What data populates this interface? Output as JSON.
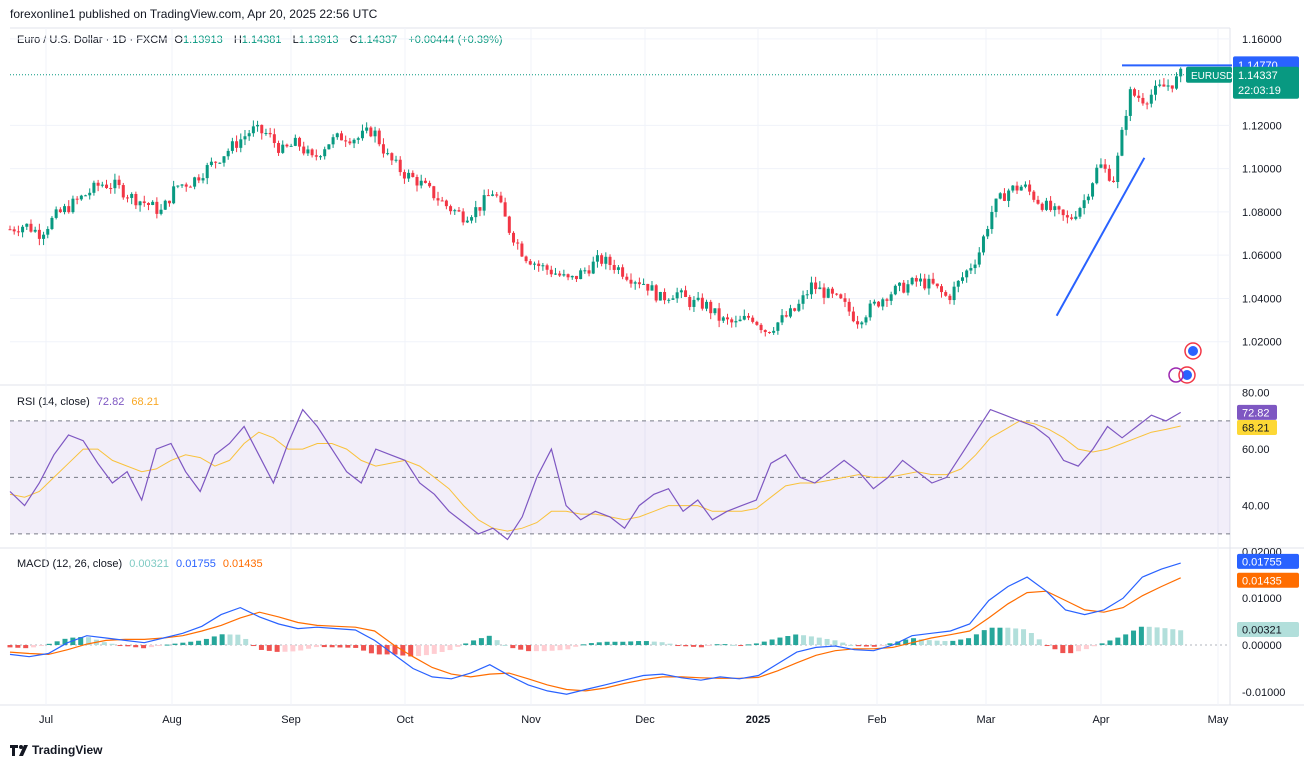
{
  "header": {
    "published": "forexonline1 published on TradingView.com, Apr 20, 2025 22:56 UTC"
  },
  "legend": {
    "symbol": "Euro / U.S. Dollar · 1D · FXCM",
    "o_label": "O",
    "o_value": "1.13913",
    "h_label": "H",
    "h_value": "1.14381",
    "l_label": "L",
    "l_value": "1.13913",
    "c_label": "C",
    "c_value": "1.14337",
    "change": "+0.00444 (+0.39%)"
  },
  "rsi_legend": {
    "name": "RSI (14, close)",
    "rsi": "72.82",
    "ma": "68.21"
  },
  "macd_legend": {
    "name": "MACD (12, 26, close)",
    "hist": "0.00321",
    "macd": "0.01755",
    "signal": "0.01435"
  },
  "footer": {
    "brand": "TradingView"
  },
  "colors": {
    "up": "#089981",
    "down": "#f23645",
    "trend": "#2962ff",
    "rsi": "#7e57c2",
    "rsi_ma": "#fdd835",
    "macd": "#2962ff",
    "signal": "#ff6d00",
    "hist_up": "#26a69a",
    "hist_up_light": "#b2dfdb",
    "hist_down": "#ef5350",
    "hist_down_light": "#ffcdd2"
  },
  "chart_data": [
    {
      "type": "candlestick",
      "title": "Euro / U.S. Dollar · 1D · FXCM",
      "symbol_tag": "EURUSD",
      "x_labels": [
        "Jul",
        "Aug",
        "Sep",
        "Oct",
        "Nov",
        "Dec",
        "2025",
        "Feb",
        "Mar",
        "Apr",
        "May"
      ],
      "y_ticks": [
        "1.16000",
        "1.14770",
        "1.14337",
        "1.12000",
        "1.10000",
        "1.08000",
        "1.06000",
        "1.04000",
        "1.02000"
      ],
      "ylim": [
        1.0,
        1.165
      ],
      "price_labels": {
        "high_line": "1.14770",
        "last": "1.14337",
        "countdown": "22:03:19"
      },
      "close_path": [
        [
          0,
          1.072
        ],
        [
          5,
          1.074
        ],
        [
          10,
          1.07
        ],
        [
          15,
          1.078
        ],
        [
          20,
          1.083
        ],
        [
          25,
          1.088
        ],
        [
          30,
          1.093
        ],
        [
          35,
          1.092
        ],
        [
          40,
          1.087
        ],
        [
          45,
          1.084
        ],
        [
          50,
          1.08
        ],
        [
          55,
          1.092
        ],
        [
          60,
          1.094
        ],
        [
          65,
          1.1
        ],
        [
          70,
          1.106
        ],
        [
          75,
          1.112
        ],
        [
          80,
          1.118
        ],
        [
          85,
          1.116
        ],
        [
          90,
          1.108
        ],
        [
          95,
          1.112
        ],
        [
          100,
          1.104
        ],
        [
          105,
          1.112
        ],
        [
          110,
          1.115
        ],
        [
          115,
          1.114
        ],
        [
          120,
          1.118
        ],
        [
          125,
          1.105
        ],
        [
          130,
          1.098
        ],
        [
          135,
          1.094
        ],
        [
          140,
          1.088
        ],
        [
          145,
          1.082
        ],
        [
          150,
          1.078
        ],
        [
          155,
          1.082
        ],
        [
          160,
          1.09
        ],
        [
          165,
          1.072
        ],
        [
          170,
          1.06
        ],
        [
          175,
          1.055
        ],
        [
          180,
          1.052
        ],
        [
          185,
          1.048
        ],
        [
          190,
          1.053
        ],
        [
          195,
          1.058
        ],
        [
          200,
          1.055
        ],
        [
          205,
          1.05
        ],
        [
          210,
          1.047
        ],
        [
          215,
          1.04
        ],
        [
          220,
          1.043
        ],
        [
          225,
          1.038
        ],
        [
          230,
          1.037
        ],
        [
          235,
          1.03
        ],
        [
          240,
          1.028
        ],
        [
          245,
          1.032
        ],
        [
          250,
          1.025
        ],
        [
          255,
          1.03
        ],
        [
          260,
          1.035
        ],
        [
          265,
          1.046
        ],
        [
          270,
          1.042
        ],
        [
          275,
          1.038
        ],
        [
          280,
          1.03
        ],
        [
          285,
          1.036
        ],
        [
          290,
          1.042
        ],
        [
          295,
          1.045
        ],
        [
          300,
          1.048
        ],
        [
          305,
          1.046
        ],
        [
          310,
          1.04
        ],
        [
          315,
          1.05
        ],
        [
          320,
          1.06
        ],
        [
          325,
          1.082
        ],
        [
          330,
          1.09
        ],
        [
          335,
          1.092
        ],
        [
          340,
          1.085
        ],
        [
          345,
          1.08
        ],
        [
          350,
          1.076
        ],
        [
          355,
          1.085
        ],
        [
          360,
          1.102
        ],
        [
          365,
          1.095
        ],
        [
          370,
          1.135
        ],
        [
          375,
          1.132
        ],
        [
          380,
          1.137
        ],
        [
          385,
          1.14
        ],
        [
          387,
          1.14337
        ]
      ],
      "trendline": [
        [
          346,
          1.032
        ],
        [
          375,
          1.105
        ]
      ],
      "high_line": 1.1477
    },
    {
      "type": "line",
      "title": "RSI (14, close)",
      "y_ticks": [
        "80.00",
        "72.82",
        "68.21",
        "60.00",
        "40.00"
      ],
      "ylim": [
        25,
        82
      ],
      "bands": {
        "upper": 70,
        "middle": 50,
        "lower": 30
      },
      "series": [
        {
          "name": "RSI",
          "values": [
            45,
            40,
            48,
            58,
            65,
            63,
            55,
            48,
            52,
            42,
            60,
            62,
            52,
            45,
            58,
            62,
            68,
            58,
            48,
            62,
            74,
            68,
            60,
            52,
            48,
            60,
            58,
            56,
            48,
            44,
            38,
            34,
            30,
            32,
            28,
            36,
            50,
            60,
            40,
            35,
            38,
            36,
            32,
            40,
            44,
            46,
            38,
            42,
            35,
            38,
            40,
            42,
            55,
            58,
            50,
            48,
            52,
            56,
            52,
            46,
            50,
            56,
            52,
            48,
            50,
            58,
            66,
            74,
            72,
            70,
            68,
            64,
            56,
            54,
            60,
            68,
            64,
            68,
            72,
            70,
            73
          ]
        },
        {
          "name": "RSI MA",
          "values": [
            44,
            43,
            45,
            50,
            55,
            60,
            60,
            56,
            54,
            52,
            53,
            56,
            58,
            57,
            54,
            56,
            62,
            66,
            64,
            60,
            60,
            62,
            62,
            60,
            56,
            54,
            55,
            56,
            54,
            50,
            46,
            40,
            35,
            32,
            31,
            32,
            34,
            38,
            38,
            37,
            37,
            36,
            35,
            36,
            38,
            40,
            40,
            40,
            38,
            38,
            38,
            39,
            43,
            47,
            48,
            48,
            49,
            50,
            51,
            50,
            50,
            51,
            52,
            51,
            51,
            53,
            58,
            64,
            67,
            70,
            69,
            67,
            64,
            60,
            59,
            60,
            62,
            64,
            66,
            67,
            68.21
          ]
        }
      ]
    },
    {
      "type": "line",
      "title": "MACD (12, 26, close)",
      "y_ticks": [
        "0.02000",
        "0.01755",
        "0.01435",
        "0.01000",
        "0.00321",
        "0.00000",
        "-0.01000"
      ],
      "ylim": [
        -0.0128,
        0.0205
      ],
      "series": [
        {
          "name": "MACD",
          "values": [
            -0.002,
            -0.0025,
            -0.0018,
            0.0005,
            0.002,
            0.0015,
            0.001,
            0.0005,
            0.0015,
            0.0025,
            0.004,
            0.0065,
            0.008,
            0.006,
            0.0045,
            0.0035,
            0.0038,
            0.0035,
            0.0032,
            0.001,
            -0.002,
            -0.005,
            -0.0068,
            -0.0072,
            -0.006,
            -0.0042,
            -0.0065,
            -0.0085,
            -0.0098,
            -0.0105,
            -0.0095,
            -0.0085,
            -0.0075,
            -0.0065,
            -0.0062,
            -0.007,
            -0.0075,
            -0.0068,
            -0.0072,
            -0.0065,
            -0.004,
            -0.0015,
            -0.0005,
            -0.0002,
            -0.001,
            -0.0012,
            0.0,
            0.002,
            0.0025,
            0.003,
            0.0045,
            0.0095,
            0.0125,
            0.0145,
            0.0115,
            0.0075,
            0.0065,
            0.0075,
            0.01,
            0.0145,
            0.0162,
            0.0175
          ]
        },
        {
          "name": "Signal",
          "values": [
            -0.0015,
            -0.0018,
            -0.002,
            -0.001,
            0.0002,
            0.001,
            0.0012,
            0.0012,
            0.0015,
            0.002,
            0.003,
            0.0042,
            0.0058,
            0.007,
            0.006,
            0.0048,
            0.0042,
            0.004,
            0.0038,
            0.003,
            0.0,
            -0.0025,
            -0.0048,
            -0.0062,
            -0.0068,
            -0.0062,
            -0.006,
            -0.0072,
            -0.0085,
            -0.0095,
            -0.0098,
            -0.0092,
            -0.0082,
            -0.0074,
            -0.0068,
            -0.0068,
            -0.007,
            -0.0071,
            -0.0071,
            -0.0069,
            -0.0055,
            -0.0038,
            -0.0022,
            -0.0012,
            -0.0008,
            -0.0008,
            -0.0005,
            0.0005,
            0.0015,
            0.0022,
            0.003,
            0.0058,
            0.0088,
            0.0112,
            0.0115,
            0.0095,
            0.0075,
            0.007,
            0.008,
            0.0105,
            0.0125,
            0.01435
          ]
        }
      ]
    }
  ]
}
